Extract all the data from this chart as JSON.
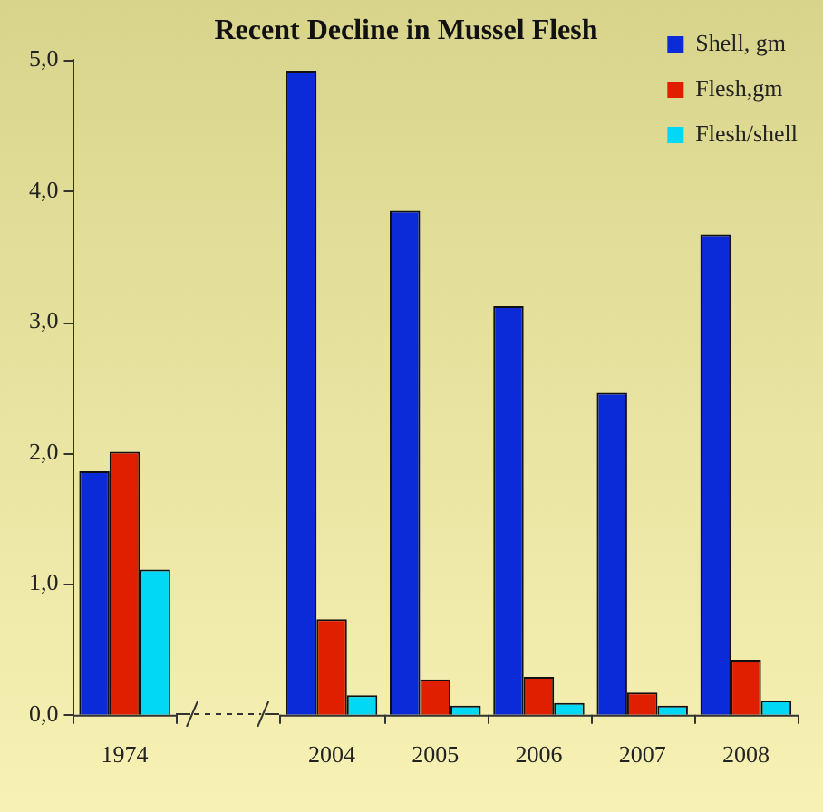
{
  "chart_data": {
    "type": "bar",
    "title": "Recent Decline in Mussel Flesh",
    "categories": [
      "1974",
      null,
      "2004",
      "2005",
      "2006",
      "2007",
      "2008"
    ],
    "series": [
      {
        "name": "Shell, gm",
        "color": "#0b2bd8",
        "values": [
          1.86,
          null,
          4.92,
          3.85,
          3.12,
          2.46,
          3.67
        ]
      },
      {
        "name": "Flesh,gm",
        "color": "#e01e00",
        "values": [
          2.01,
          null,
          0.73,
          0.27,
          0.29,
          0.17,
          0.42
        ]
      },
      {
        "name": "Flesh/shell",
        "color": "#00d8f5",
        "values": [
          1.11,
          null,
          0.15,
          0.07,
          0.09,
          0.07,
          0.11
        ]
      }
    ],
    "ylim": [
      0,
      5
    ],
    "yticks": [
      {
        "value": 0,
        "label": "0,0"
      },
      {
        "value": 1,
        "label": "1,0"
      },
      {
        "value": 2,
        "label": "2,0"
      },
      {
        "value": 3,
        "label": "3,0"
      },
      {
        "value": 4,
        "label": "4,0"
      },
      {
        "value": 5,
        "label": "5,0"
      }
    ],
    "legend": "top right"
  }
}
